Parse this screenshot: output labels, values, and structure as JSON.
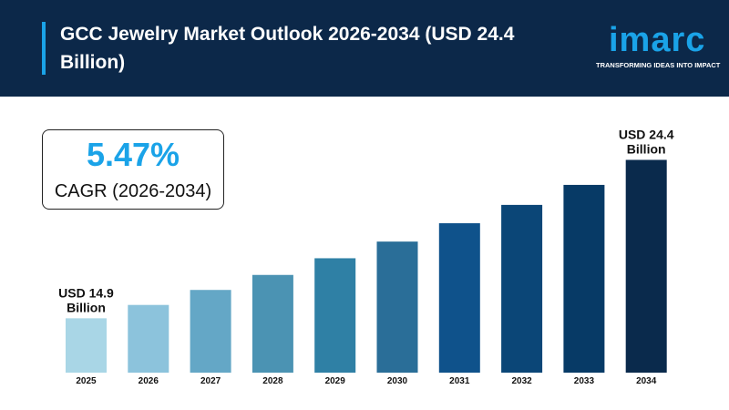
{
  "header": {
    "title": "GCC Jewelry Market Outlook 2026-2034 (USD 24.4 Billion)",
    "logo": "imarc",
    "logo_tagline": "TRANSFORMING IDEAS INTO IMPACT"
  },
  "cagr": {
    "value": "5.47%",
    "label": "CAGR (2026-2034)"
  },
  "colors": {
    "header": "#0c2849",
    "accent": "#1aa3e8",
    "bars": [
      "#a9d6e6",
      "#8cc3dc",
      "#64a7c6",
      "#4b93b3",
      "#2f80a5",
      "#2a6e98",
      "#0f528b",
      "#0b4677",
      "#073a66",
      "#0a2a4c"
    ]
  },
  "chart_data": {
    "type": "bar",
    "title": "GCC Jewelry Market Outlook 2026-2034 (USD 24.4 Billion)",
    "categories": [
      "2025",
      "2026",
      "2027",
      "2028",
      "2029",
      "2030",
      "2031",
      "2032",
      "2033",
      "2034"
    ],
    "values": [
      14.9,
      15.7,
      16.6,
      17.5,
      18.5,
      19.5,
      20.6,
      21.7,
      22.9,
      24.4
    ],
    "unit": "USD Billion",
    "annotations": [
      {
        "category": "2025",
        "line1": "USD 14.9",
        "line2": "Billion"
      },
      {
        "category": "2034",
        "line1": "USD 24.4",
        "line2": "Billion"
      }
    ],
    "grid": false,
    "legend": "none"
  }
}
